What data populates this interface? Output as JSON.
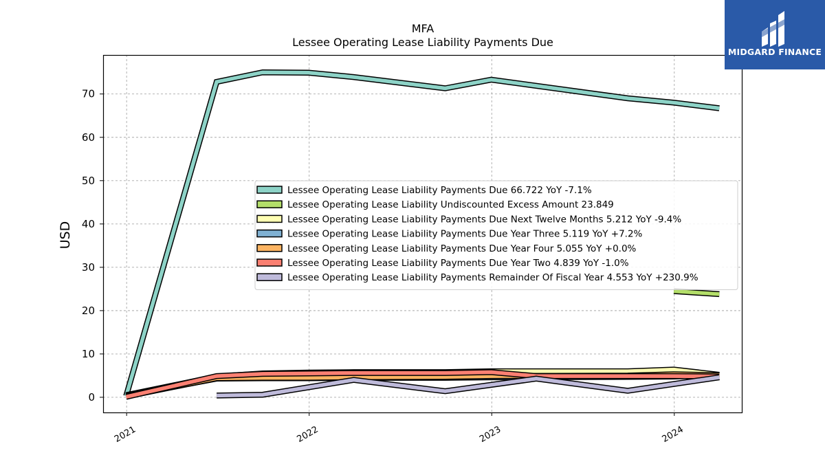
{
  "chart_data": {
    "type": "line",
    "title": "MFA",
    "subtitle": "Lessee Operating Lease Liability Payments Due",
    "ylabel": "USD",
    "xlabel": "",
    "ylim": [
      -3.5,
      79
    ],
    "xlim": [
      "2020-11-15",
      "2024-05-15"
    ],
    "yticks": [
      0,
      10,
      20,
      30,
      40,
      50,
      60,
      70
    ],
    "xticks": [
      "2021",
      "2022",
      "2023",
      "2024"
    ],
    "grid": true,
    "legend_position": "center-right",
    "series": [
      {
        "name": "Lessee Operating Lease Liability Payments Due",
        "legend": "Lessee Operating Lease Liability Payments Due  66.722 YoY -7.1%",
        "color": "#8dd3c7",
        "x": [
          "2020-12-31",
          "2021-06-30",
          "2021-09-30",
          "2021-12-31",
          "2022-03-31",
          "2022-09-30",
          "2022-12-31",
          "2023-09-30",
          "2023-12-31",
          "2024-03-31"
        ],
        "y": [
          0.3,
          72.8,
          75.0,
          74.9,
          73.9,
          71.3,
          73.3,
          69.0,
          68.0,
          66.7
        ]
      },
      {
        "name": "Lessee Operating Lease Liability Undiscounted Excess Amount",
        "legend": "Lessee Operating Lease Liability Undiscounted Excess Amount  23.849",
        "color": "#b3de69",
        "x": [
          "2023-12-31",
          "2024-03-31"
        ],
        "y": [
          24.5,
          23.8
        ]
      },
      {
        "name": "Lessee Operating Lease Liability Payments Due Next Twelve Months",
        "legend": "Lessee Operating Lease Liability Payments Due Next Twelve Months  5.212 YoY -9.4%",
        "color": "#ffffb3",
        "x": [
          "2020-12-31",
          "2021-06-30",
          "2021-09-30",
          "2021-12-31",
          "2022-03-31",
          "2022-09-30",
          "2022-12-31",
          "2023-09-30",
          "2023-12-31",
          "2024-03-31"
        ],
        "y": [
          0.5,
          4.8,
          5.5,
          5.7,
          5.8,
          5.8,
          6.0,
          6.0,
          6.4,
          5.2
        ]
      },
      {
        "name": "Lessee Operating Lease Liability Payments Due Year Three",
        "legend": "Lessee Operating Lease Liability Payments Due Year Three  5.119 YoY +7.2%",
        "color": "#80b1d3",
        "x": [
          "2020-12-31",
          "2021-06-30",
          "2021-09-30",
          "2021-12-31",
          "2022-03-31",
          "2022-09-30",
          "2022-12-31",
          "2023-09-30",
          "2023-12-31",
          "2024-03-31"
        ],
        "y": [
          0.4,
          4.3,
          4.4,
          4.4,
          4.5,
          4.5,
          4.6,
          4.7,
          4.8,
          5.1
        ]
      },
      {
        "name": "Lessee Operating Lease Liability Payments Due Year Four",
        "legend": "Lessee Operating Lease Liability Payments Due Year Four  5.055 YoY +0.0%",
        "color": "#fdb462",
        "x": [
          "2020-12-31",
          "2021-06-30",
          "2021-09-30",
          "2021-12-31",
          "2022-03-31",
          "2022-09-30",
          "2022-12-31",
          "2023-09-30",
          "2023-12-31",
          "2024-03-31"
        ],
        "y": [
          0.2,
          4.4,
          4.5,
          4.5,
          4.6,
          4.7,
          4.9,
          5.0,
          5.3,
          5.1
        ]
      },
      {
        "name": "Lessee Operating Lease Liability Payments Due Year Two",
        "legend": "Lessee Operating Lease Liability Payments Due Year Two  4.839 YoY -1.0%",
        "color": "#fb8072",
        "x": [
          "2020-12-31",
          "2021-06-30",
          "2021-09-30",
          "2021-12-31",
          "2022-03-31",
          "2022-09-30",
          "2022-12-31",
          "2023-03-31",
          "2023-09-30",
          "2023-12-31",
          "2024-03-31"
        ],
        "y": [
          0.1,
          4.9,
          5.4,
          5.5,
          5.6,
          5.6,
          5.8,
          4.9,
          4.9,
          4.9,
          4.8
        ]
      },
      {
        "name": "Lessee Operating Lease Liability Payments Remainder Of Fiscal Year",
        "legend": "Lessee Operating Lease Liability Payments Remainder Of Fiscal Year  4.553 YoY +230.9%",
        "color": "#bebada",
        "x": [
          "2021-06-30",
          "2021-09-30",
          "2022-03-31",
          "2022-09-30",
          "2023-03-31",
          "2023-09-30",
          "2024-03-31"
        ],
        "y": [
          0.4,
          0.6,
          4.0,
          1.4,
          4.3,
          1.5,
          4.6
        ]
      }
    ]
  },
  "logo": {
    "brand": "MIDGARD FINANCE",
    "color": "#2a5aa8"
  }
}
